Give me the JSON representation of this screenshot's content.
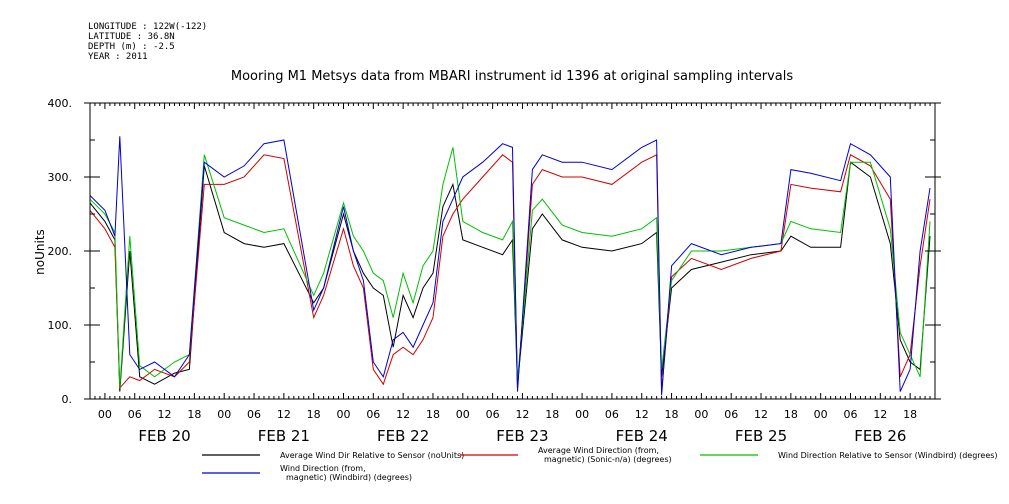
{
  "meta": {
    "longitude": "LONGITUDE : 122W(-122)",
    "latitude": "LATITUDE : 36.8N",
    "depth": "DEPTH (m) : -2.5",
    "year": "YEAR : 2011"
  },
  "chart_data": {
    "type": "line",
    "title": "Mooring M1 Metsys data from MBARI instrument id 1396 at original sampling intervals",
    "xlabel": "",
    "ylabel": "noUnits",
    "ylim": [
      0,
      400
    ],
    "yticks": [
      0,
      100,
      200,
      300,
      400
    ],
    "ytick_labels": [
      "0.",
      "100.",
      "200.",
      "300.",
      "400."
    ],
    "xlim": [
      "2011-02-19T21:00",
      "2011-02-26T23:00"
    ],
    "hour_tick_labels": [
      "00",
      "06",
      "12",
      "18"
    ],
    "day_labels": [
      {
        "label": "FEB 20",
        "date": "2011-02-20"
      },
      {
        "label": "FEB 21",
        "date": "2011-02-21"
      },
      {
        "label": "FEB 22",
        "date": "2011-02-22"
      },
      {
        "label": "FEB 23",
        "date": "2011-02-23"
      },
      {
        "label": "FEB 24",
        "date": "2011-02-24"
      },
      {
        "label": "FEB 25",
        "date": "2011-02-25"
      },
      {
        "label": "FEB 26",
        "date": "2011-02-26"
      }
    ],
    "grid": false,
    "legend_placement": "bottom",
    "series": [
      {
        "name": "Average Wind Dir Relative to Sensor (noUnits)",
        "color": "#000000",
        "x": [
          "2011-02-19T21:00",
          "2011-02-20T00:00",
          "2011-02-20T02:00",
          "2011-02-20T03:00",
          "2011-02-20T05:00",
          "2011-02-20T07:00",
          "2011-02-20T10:00",
          "2011-02-20T14:00",
          "2011-02-20T17:00",
          "2011-02-20T20:00",
          "2011-02-21T00:00",
          "2011-02-21T04:00",
          "2011-02-21T08:00",
          "2011-02-21T12:00",
          "2011-02-21T18:00",
          "2011-02-21T20:00",
          "2011-02-22T00:00",
          "2011-02-22T02:00",
          "2011-02-22T04:00",
          "2011-02-22T06:00",
          "2011-02-22T08:00",
          "2011-02-22T10:00",
          "2011-02-22T12:00",
          "2011-02-22T14:00",
          "2011-02-22T16:00",
          "2011-02-22T18:00",
          "2011-02-22T20:00",
          "2011-02-22T22:00",
          "2011-02-23T00:00",
          "2011-02-23T04:00",
          "2011-02-23T08:00",
          "2011-02-23T10:00",
          "2011-02-23T11:00",
          "2011-02-23T14:00",
          "2011-02-23T16:00",
          "2011-02-23T20:00",
          "2011-02-24T00:00",
          "2011-02-24T06:00",
          "2011-02-24T12:00",
          "2011-02-24T15:00",
          "2011-02-24T16:00",
          "2011-02-24T18:00",
          "2011-02-24T22:00",
          "2011-02-25T04:00",
          "2011-02-25T10:00",
          "2011-02-25T16:00",
          "2011-02-25T18:00",
          "2011-02-25T22:00",
          "2011-02-26T04:00",
          "2011-02-26T06:00",
          "2011-02-26T10:00",
          "2011-02-26T14:00",
          "2011-02-26T16:00",
          "2011-02-26T18:00",
          "2011-02-26T20:00",
          "2011-02-26T22:00"
        ],
        "y": [
          265,
          240,
          215,
          10,
          200,
          30,
          20,
          35,
          40,
          315,
          225,
          210,
          205,
          210,
          130,
          150,
          250,
          200,
          170,
          150,
          140,
          70,
          140,
          110,
          150,
          170,
          260,
          290,
          215,
          205,
          195,
          215,
          20,
          230,
          250,
          215,
          205,
          200,
          210,
          225,
          30,
          150,
          175,
          185,
          195,
          200,
          220,
          205,
          205,
          320,
          300,
          210,
          80,
          50,
          40,
          220
        ]
      },
      {
        "name": "Average Wind Direction (from, magnetic) (Sonic-n/a) (degrees)",
        "color": "#d00000",
        "x": [
          "2011-02-19T21:00",
          "2011-02-20T00:00",
          "2011-02-20T02:00",
          "2011-02-20T03:00",
          "2011-02-20T05:00",
          "2011-02-20T07:00",
          "2011-02-20T10:00",
          "2011-02-20T14:00",
          "2011-02-20T17:00",
          "2011-02-20T20:00",
          "2011-02-21T00:00",
          "2011-02-21T04:00",
          "2011-02-21T08:00",
          "2011-02-21T12:00",
          "2011-02-21T18:00",
          "2011-02-21T20:00",
          "2011-02-22T00:00",
          "2011-02-22T02:00",
          "2011-02-22T04:00",
          "2011-02-22T06:00",
          "2011-02-22T08:00",
          "2011-02-22T10:00",
          "2011-02-22T12:00",
          "2011-02-22T14:00",
          "2011-02-22T16:00",
          "2011-02-22T18:00",
          "2011-02-22T20:00",
          "2011-02-22T22:00",
          "2011-02-23T00:00",
          "2011-02-23T04:00",
          "2011-02-23T08:00",
          "2011-02-23T10:00",
          "2011-02-23T11:00",
          "2011-02-23T14:00",
          "2011-02-23T16:00",
          "2011-02-23T20:00",
          "2011-02-24T00:00",
          "2011-02-24T06:00",
          "2011-02-24T12:00",
          "2011-02-24T15:00",
          "2011-02-24T16:00",
          "2011-02-24T18:00",
          "2011-02-24T22:00",
          "2011-02-25T04:00",
          "2011-02-25T10:00",
          "2011-02-25T16:00",
          "2011-02-25T18:00",
          "2011-02-25T22:00",
          "2011-02-26T04:00",
          "2011-02-26T06:00",
          "2011-02-26T10:00",
          "2011-02-26T14:00",
          "2011-02-26T16:00",
          "2011-02-26T18:00",
          "2011-02-26T20:00",
          "2011-02-26T22:00"
        ],
        "y": [
          255,
          230,
          205,
          15,
          30,
          25,
          40,
          30,
          50,
          290,
          290,
          300,
          330,
          325,
          110,
          140,
          230,
          180,
          150,
          40,
          20,
          60,
          70,
          60,
          80,
          110,
          220,
          250,
          270,
          300,
          330,
          320,
          15,
          290,
          310,
          300,
          300,
          290,
          320,
          330,
          10,
          165,
          190,
          175,
          190,
          200,
          290,
          285,
          280,
          330,
          315,
          270,
          30,
          60,
          180,
          270
        ]
      },
      {
        "name": "Wind Direction Relative to Sensor (Windbird) (degrees)",
        "color": "#00c000",
        "x": [
          "2011-02-19T21:00",
          "2011-02-20T00:00",
          "2011-02-20T02:00",
          "2011-02-20T03:00",
          "2011-02-20T05:00",
          "2011-02-20T07:00",
          "2011-02-20T10:00",
          "2011-02-20T14:00",
          "2011-02-20T17:00",
          "2011-02-20T20:00",
          "2011-02-21T00:00",
          "2011-02-21T04:00",
          "2011-02-21T08:00",
          "2011-02-21T12:00",
          "2011-02-21T18:00",
          "2011-02-21T20:00",
          "2011-02-22T00:00",
          "2011-02-22T02:00",
          "2011-02-22T04:00",
          "2011-02-22T06:00",
          "2011-02-22T08:00",
          "2011-02-22T10:00",
          "2011-02-22T12:00",
          "2011-02-22T14:00",
          "2011-02-22T16:00",
          "2011-02-22T18:00",
          "2011-02-22T20:00",
          "2011-02-22T22:00",
          "2011-02-23T00:00",
          "2011-02-23T04:00",
          "2011-02-23T08:00",
          "2011-02-23T10:00",
          "2011-02-23T11:00",
          "2011-02-23T14:00",
          "2011-02-23T16:00",
          "2011-02-23T20:00",
          "2011-02-24T00:00",
          "2011-02-24T06:00",
          "2011-02-24T12:00",
          "2011-02-24T15:00",
          "2011-02-24T16:00",
          "2011-02-24T18:00",
          "2011-02-24T22:00",
          "2011-02-25T04:00",
          "2011-02-25T10:00",
          "2011-02-25T16:00",
          "2011-02-25T18:00",
          "2011-02-25T22:00",
          "2011-02-26T04:00",
          "2011-02-26T06:00",
          "2011-02-26T10:00",
          "2011-02-26T14:00",
          "2011-02-26T16:00",
          "2011-02-26T18:00",
          "2011-02-26T20:00",
          "2011-02-26T22:00"
        ],
        "y": [
          270,
          250,
          225,
          15,
          220,
          45,
          30,
          50,
          60,
          330,
          245,
          235,
          225,
          230,
          140,
          170,
          265,
          220,
          200,
          170,
          160,
          110,
          170,
          130,
          180,
          200,
          290,
          340,
          240,
          225,
          215,
          240,
          25,
          255,
          270,
          235,
          225,
          220,
          230,
          245,
          40,
          160,
          200,
          200,
          205,
          210,
          240,
          230,
          225,
          320,
          320,
          230,
          90,
          60,
          30,
          240
        ]
      },
      {
        "name": "Wind Direction (from, magnetic) (Windbird) (degrees)",
        "color": "#0000d0",
        "x": [
          "2011-02-19T21:00",
          "2011-02-20T00:00",
          "2011-02-20T02:00",
          "2011-02-20T03:00",
          "2011-02-20T05:00",
          "2011-02-20T07:00",
          "2011-02-20T10:00",
          "2011-02-20T14:00",
          "2011-02-20T17:00",
          "2011-02-20T20:00",
          "2011-02-21T00:00",
          "2011-02-21T04:00",
          "2011-02-21T08:00",
          "2011-02-21T12:00",
          "2011-02-21T18:00",
          "2011-02-21T20:00",
          "2011-02-22T00:00",
          "2011-02-22T02:00",
          "2011-02-22T04:00",
          "2011-02-22T06:00",
          "2011-02-22T08:00",
          "2011-02-22T10:00",
          "2011-02-22T12:00",
          "2011-02-22T14:00",
          "2011-02-22T16:00",
          "2011-02-22T18:00",
          "2011-02-22T20:00",
          "2011-02-22T22:00",
          "2011-02-23T00:00",
          "2011-02-23T04:00",
          "2011-02-23T08:00",
          "2011-02-23T10:00",
          "2011-02-23T11:00",
          "2011-02-23T14:00",
          "2011-02-23T16:00",
          "2011-02-23T20:00",
          "2011-02-24T00:00",
          "2011-02-24T06:00",
          "2011-02-24T12:00",
          "2011-02-24T15:00",
          "2011-02-24T16:00",
          "2011-02-24T18:00",
          "2011-02-24T22:00",
          "2011-02-25T04:00",
          "2011-02-25T10:00",
          "2011-02-25T16:00",
          "2011-02-25T18:00",
          "2011-02-25T22:00",
          "2011-02-26T04:00",
          "2011-02-26T06:00",
          "2011-02-26T10:00",
          "2011-02-26T14:00",
          "2011-02-26T16:00",
          "2011-02-26T18:00",
          "2011-02-26T20:00",
          "2011-02-26T22:00"
        ],
        "y": [
          275,
          255,
          220,
          355,
          60,
          40,
          50,
          30,
          60,
          320,
          300,
          315,
          345,
          350,
          120,
          150,
          260,
          200,
          160,
          50,
          30,
          80,
          90,
          70,
          100,
          130,
          240,
          270,
          300,
          320,
          345,
          340,
          10,
          310,
          330,
          320,
          320,
          310,
          340,
          350,
          5,
          180,
          210,
          195,
          205,
          210,
          310,
          305,
          295,
          345,
          330,
          300,
          10,
          40,
          200,
          285
        ]
      }
    ]
  }
}
